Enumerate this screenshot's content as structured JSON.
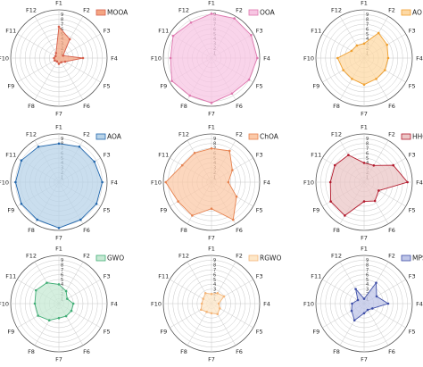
{
  "chart_data": [
    {
      "type": "radar",
      "legend": "MOOA",
      "color": "#d6604d",
      "fill": "#f4a582",
      "categories": [
        "F1",
        "F2",
        "F3",
        "F4",
        "F5",
        "F6",
        "F7",
        "F8",
        "F9",
        "F10",
        "F11",
        "F12"
      ],
      "values": [
        6.5,
        4.5,
        1,
        5,
        1.5,
        1,
        1.2,
        0.8,
        1,
        1,
        0.8,
        1.2
      ],
      "rlim": [
        0,
        10
      ],
      "ring_labels": [
        "1",
        "2",
        "3",
        "4",
        "5",
        "6",
        "7",
        "8",
        "9"
      ]
    },
    {
      "type": "radar",
      "legend": "OOA",
      "color": "#de77ae",
      "fill": "#f7c6e3",
      "categories": [
        "F1",
        "F2",
        "F3",
        "F4",
        "F5",
        "F6",
        "F7",
        "F8",
        "F9",
        "F10",
        "F11",
        "F12"
      ],
      "values": [
        9.2,
        9.5,
        9.5,
        9.5,
        9,
        8.5,
        9.3,
        9,
        9.5,
        8.5,
        9.2,
        8.5
      ],
      "rlim": [
        0,
        10
      ],
      "ring_labels": [
        "1",
        "2",
        "3",
        "4",
        "5",
        "6",
        "7",
        "8",
        "9"
      ]
    },
    {
      "type": "radar",
      "legend": "AO",
      "color": "#f0a030",
      "fill": "#fdd9a5",
      "categories": [
        "F1",
        "F2",
        "F3",
        "F4",
        "F5",
        "F6",
        "F7",
        "F8",
        "F9",
        "F10",
        "F11",
        "F12"
      ],
      "values": [
        3,
        6,
        5.5,
        5,
        5,
        5,
        5.5,
        5,
        5,
        5.5,
        3,
        3
      ],
      "rlim": [
        0,
        10
      ],
      "ring_labels": [
        "1",
        "2",
        "3",
        "4",
        "5",
        "6",
        "7",
        "8",
        "9"
      ]
    },
    {
      "type": "radar",
      "legend": "AOA",
      "color": "#2166ac",
      "fill": "#b8d3e8",
      "categories": [
        "F1",
        "F2",
        "F3",
        "F4",
        "F5",
        "F6",
        "F7",
        "F8",
        "F9",
        "F10",
        "F11",
        "F12"
      ],
      "values": [
        8,
        8.5,
        8.5,
        9,
        9,
        9,
        9.5,
        9,
        9,
        9,
        9,
        8.5
      ],
      "rlim": [
        0,
        10
      ],
      "ring_labels": [
        "1",
        "2",
        "3",
        "4",
        "5",
        "6",
        "7",
        "8",
        "9"
      ]
    },
    {
      "type": "radar",
      "legend": "ChOA",
      "color": "#e6824f",
      "fill": "#fbc9a8",
      "categories": [
        "F1",
        "F2",
        "F3",
        "F4",
        "F5",
        "F6",
        "F7",
        "F8",
        "F9",
        "F10",
        "F11",
        "F12"
      ],
      "values": [
        7,
        7.5,
        5,
        3.5,
        6,
        9,
        5.5,
        8,
        8,
        9.5,
        7,
        7
      ],
      "rlim": [
        0,
        10
      ],
      "ring_labels": [
        "1",
        "2",
        "3",
        "4",
        "5",
        "6",
        "7",
        "8",
        "9"
      ]
    },
    {
      "type": "radar",
      "legend": "HHO",
      "color": "#b2182b",
      "fill": "#ebc7c7",
      "categories": [
        "F1",
        "F2",
        "F3",
        "F4",
        "F5",
        "F6",
        "F7",
        "F8",
        "F9",
        "F10",
        "F11",
        "F12"
      ],
      "values": [
        4,
        4,
        7,
        9,
        3.5,
        4.5,
        4,
        8,
        8,
        7,
        7,
        6.5
      ],
      "rlim": [
        0,
        10
      ],
      "ring_labels": [
        "1",
        "2",
        "3",
        "4",
        "5",
        "6",
        "7",
        "8",
        "9"
      ]
    },
    {
      "type": "radar",
      "legend": "GWO",
      "color": "#41ae76",
      "fill": "#c7e9d4",
      "categories": [
        "F1",
        "F2",
        "F3",
        "F4",
        "F5",
        "F6",
        "F7",
        "F8",
        "F9",
        "F10",
        "F11",
        "F12"
      ],
      "values": [
        4,
        3,
        2,
        3,
        3,
        3,
        3,
        4,
        5,
        5,
        5.5,
        5
      ],
      "rlim": [
        0,
        10
      ],
      "ring_labels": [
        "1",
        "2",
        "3",
        "4",
        "5",
        "6",
        "7",
        "8",
        "9"
      ]
    },
    {
      "type": "radar",
      "legend": "RGWO",
      "color": "#f4b67a",
      "fill": "#fde7c8",
      "categories": [
        "F1",
        "F2",
        "F3",
        "F4",
        "F5",
        "F6",
        "F7",
        "F8",
        "F9",
        "F10",
        "F11",
        "F12"
      ],
      "values": [
        2,
        2.5,
        3,
        1.5,
        2,
        2.5,
        2,
        2,
        2.5,
        2,
        2,
        2.5
      ],
      "rlim": [
        0,
        10
      ],
      "ring_labels": [
        "1",
        "2",
        "3",
        "4",
        "5",
        "6",
        "7",
        "8",
        "9"
      ]
    },
    {
      "type": "radar",
      "legend": "MPSO",
      "color": "#3f4fa8",
      "fill": "#bfc6e8",
      "categories": [
        "F1",
        "F2",
        "F3",
        "F4",
        "F5",
        "F6",
        "F7",
        "F8",
        "F9",
        "F10",
        "F11",
        "F12"
      ],
      "values": [
        1,
        5,
        3,
        5,
        2,
        1.5,
        2,
        4,
        3,
        2.5,
        1.5,
        3.5
      ],
      "rlim": [
        0,
        10
      ],
      "ring_labels": [
        "1",
        "2",
        "3",
        "4",
        "5",
        "6",
        "7",
        "8",
        "9"
      ]
    }
  ]
}
